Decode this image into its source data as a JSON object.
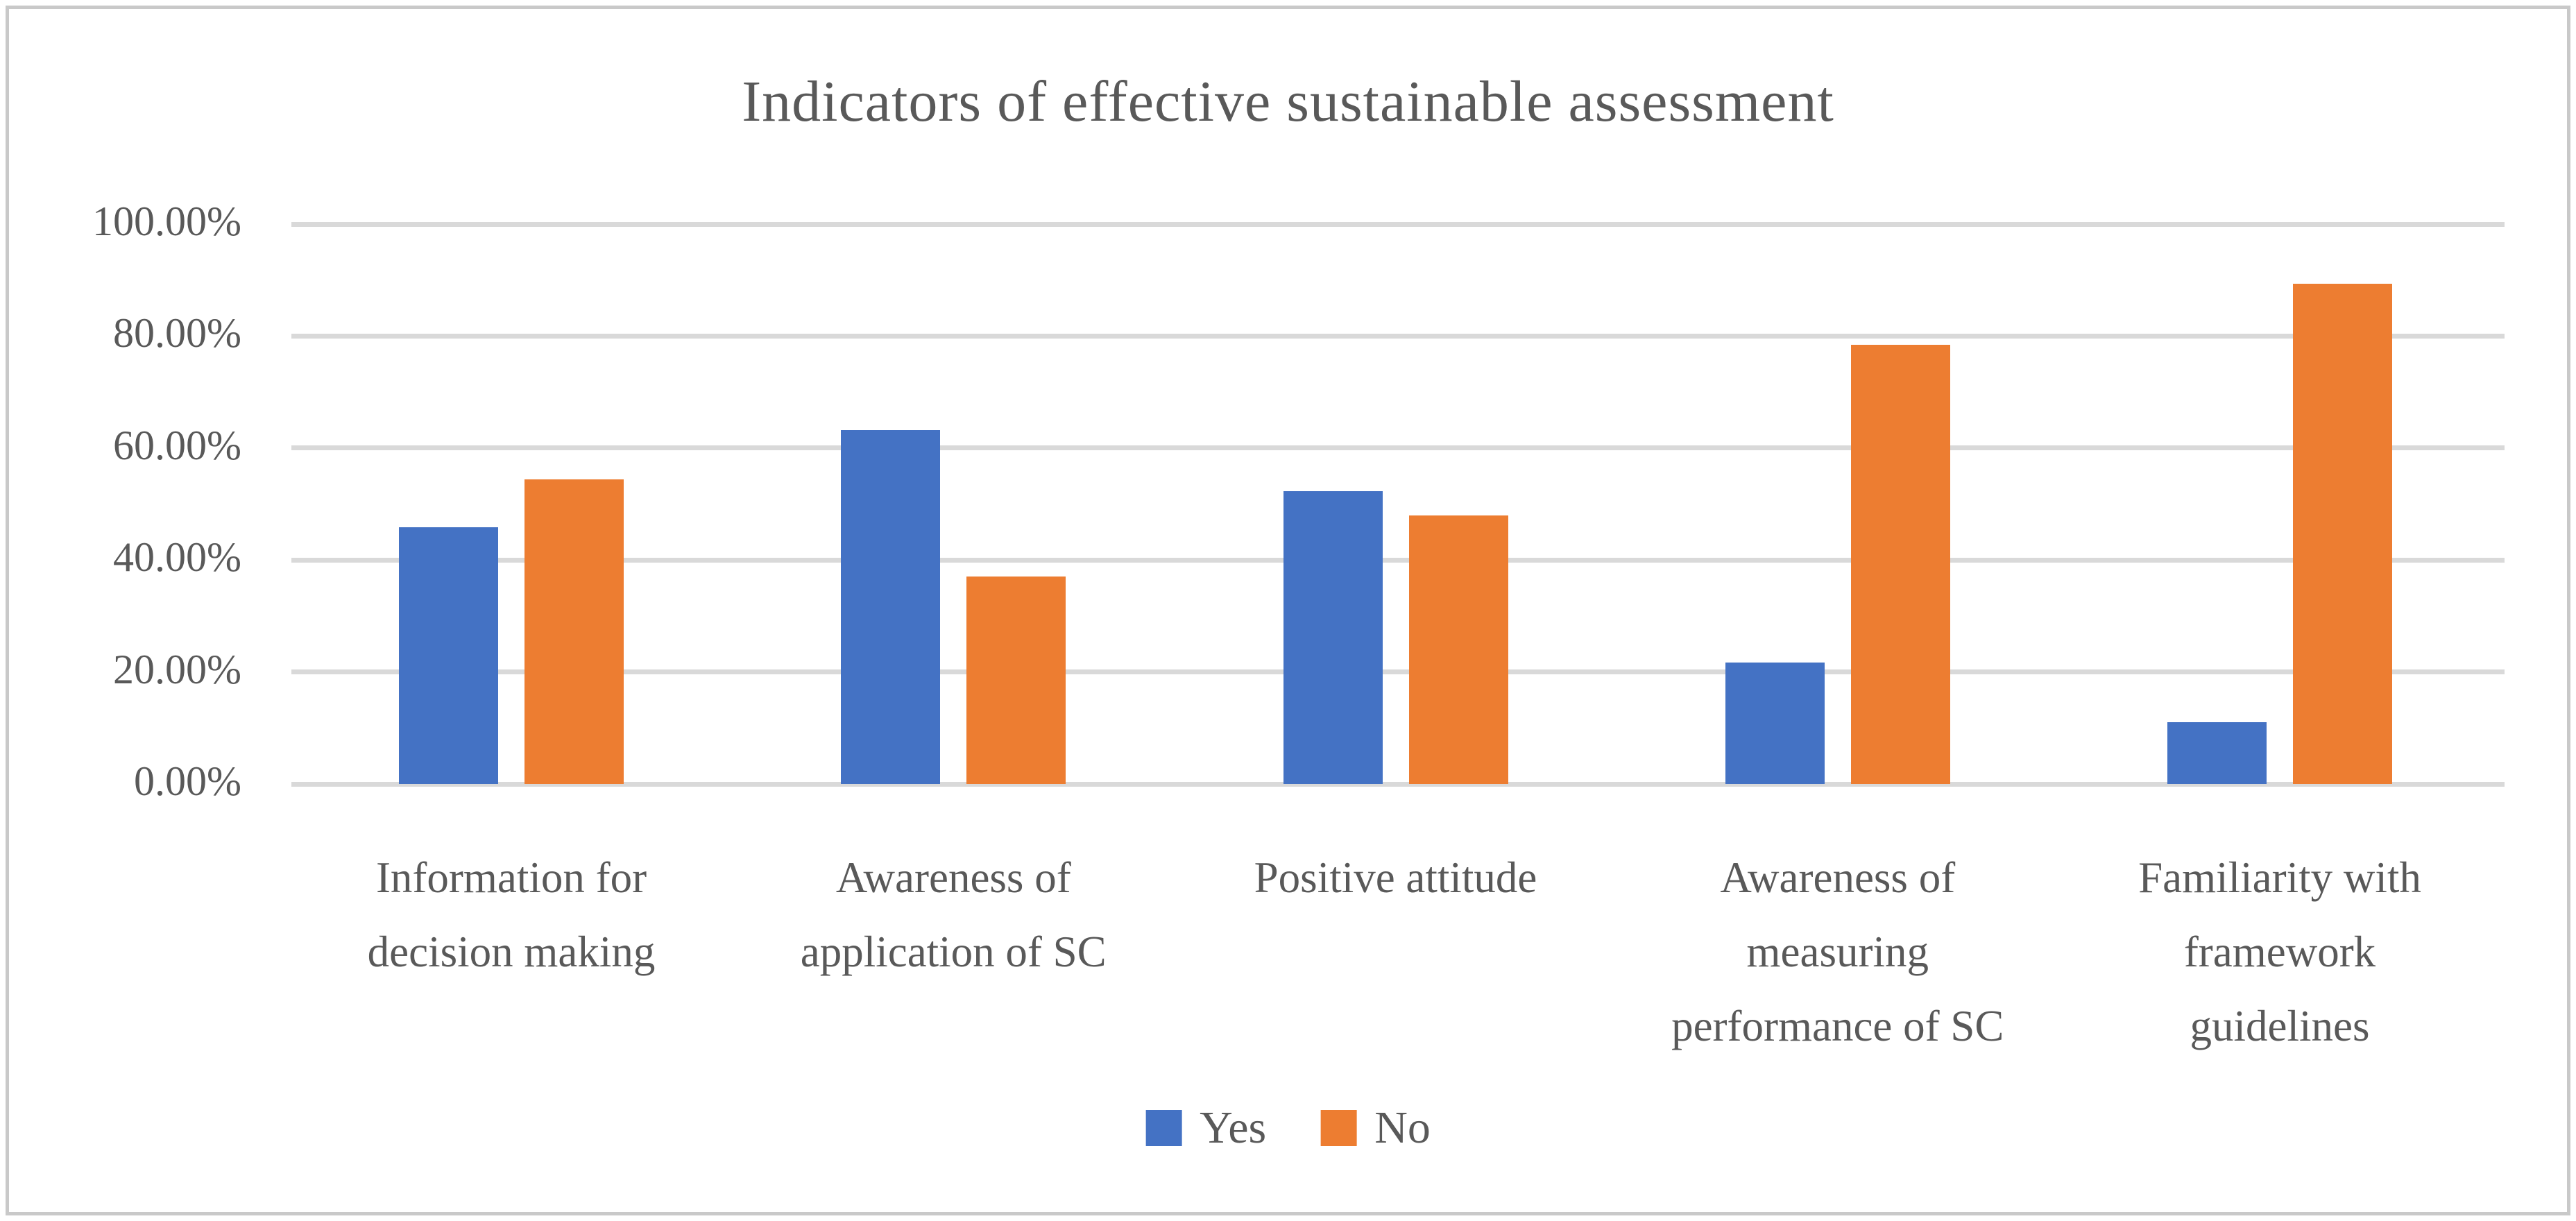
{
  "chart_data": {
    "type": "bar",
    "title": "Indicators of effective sustainable assessment",
    "categories": [
      "Information for decision making",
      "Awareness of application of SC",
      "Positive attitude",
      "Awareness of measuring performance of SC",
      "Familiarity with framework guidelines"
    ],
    "category_lines": [
      [
        "Information for",
        "decision making"
      ],
      [
        "Awareness of",
        "application of SC"
      ],
      [
        "Positive attitude"
      ],
      [
        "Awareness of",
        "measuring",
        "performance of SC"
      ],
      [
        "Familiarity with",
        "framework",
        "guidelines"
      ]
    ],
    "series": [
      {
        "name": "Yes",
        "color": "#4472C4",
        "values": [
          45.8,
          63.2,
          52.3,
          21.7,
          11.0
        ]
      },
      {
        "name": "No",
        "color": "#ED7D31",
        "values": [
          54.4,
          37.1,
          48.0,
          78.4,
          89.3
        ]
      }
    ],
    "xlabel": "",
    "ylabel": "",
    "ylim": [
      0,
      100
    ],
    "yticks": [
      "0.00%",
      "20.00%",
      "40.00%",
      "60.00%",
      "80.00%",
      "100.00%"
    ],
    "grid": true,
    "legend_position": "bottom-center"
  },
  "colors": {
    "text": "#595959",
    "gridline": "#d9d9d9",
    "frame": "#c9c9c9",
    "yes": "#4472C4",
    "no": "#ED7D31",
    "background": "#ffffff"
  }
}
